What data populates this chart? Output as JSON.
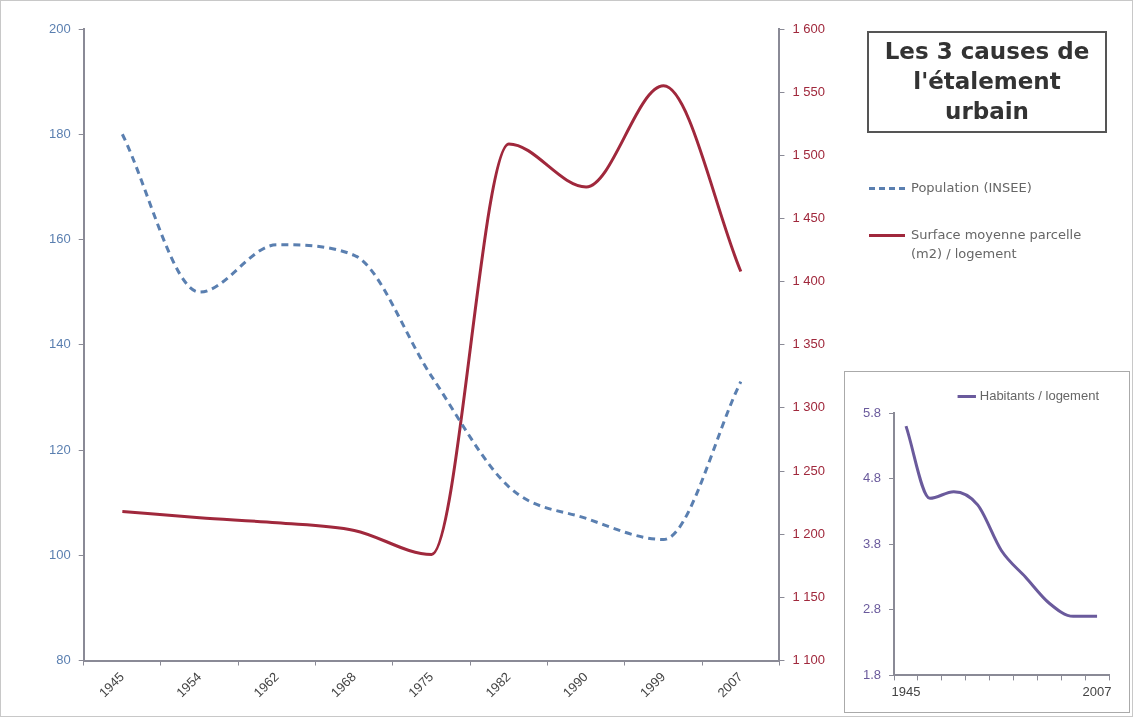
{
  "chart_data": [
    {
      "type": "line",
      "categories": [
        "1945",
        "1954",
        "1962",
        "1968",
        "1975",
        "1982",
        "1990",
        "1999",
        "2007"
      ],
      "series": [
        {
          "name": "Population (INSEE)",
          "color": "#5a7fb0",
          "line_style": "dashed",
          "values": [
            180,
            150,
            159,
            157,
            134,
            113,
            107,
            103,
            133
          ]
        },
        {
          "name": "Surface moyenne parcelle (m2) / logement",
          "color": "#a0283c",
          "line_style": "solid",
          "axis": "y2",
          "values": [
            1218,
            1213,
            1209,
            1203,
            1184,
            1509,
            1475,
            1555,
            1408
          ]
        }
      ],
      "ylim": [
        80,
        200
      ],
      "yticks": [
        80,
        100,
        120,
        140,
        160,
        180,
        200
      ],
      "y2lim": [
        1100,
        1600
      ],
      "y2ticks": [
        {
          "value": 1100,
          "label": "1 100"
        },
        {
          "value": 1150,
          "label": "1 150"
        },
        {
          "value": 1200,
          "label": "1 200"
        },
        {
          "value": 1250,
          "label": "1 250"
        },
        {
          "value": 1300,
          "label": "1 300"
        },
        {
          "value": 1350,
          "label": "1 350"
        },
        {
          "value": 1400,
          "label": "1 400"
        },
        {
          "value": 1450,
          "label": "1 450"
        },
        {
          "value": 1500,
          "label": "1 500"
        },
        {
          "value": 1550,
          "label": "1 550"
        },
        {
          "value": 1600,
          "label": "1 600"
        }
      ],
      "legend": "right",
      "grid": false,
      "marker": "none"
    },
    {
      "type": "line",
      "title": "Les 3 causes de l'étalement urbain",
      "categories": [
        "1945",
        null,
        null,
        null,
        null,
        null,
        null,
        null,
        "2007"
      ],
      "series": [
        {
          "name": "Habitants / logement",
          "color": "#6a5a9c",
          "values": [
            5.6,
            4.5,
            4.6,
            4.4,
            3.7,
            3.3,
            2.9,
            2.7,
            2.7
          ]
        }
      ],
      "ylim": [
        1.8,
        5.8
      ],
      "yticks": [
        1.8,
        2.8,
        3.8,
        4.8,
        5.8
      ],
      "legend": "top",
      "grid": false,
      "marker": "none"
    }
  ]
}
